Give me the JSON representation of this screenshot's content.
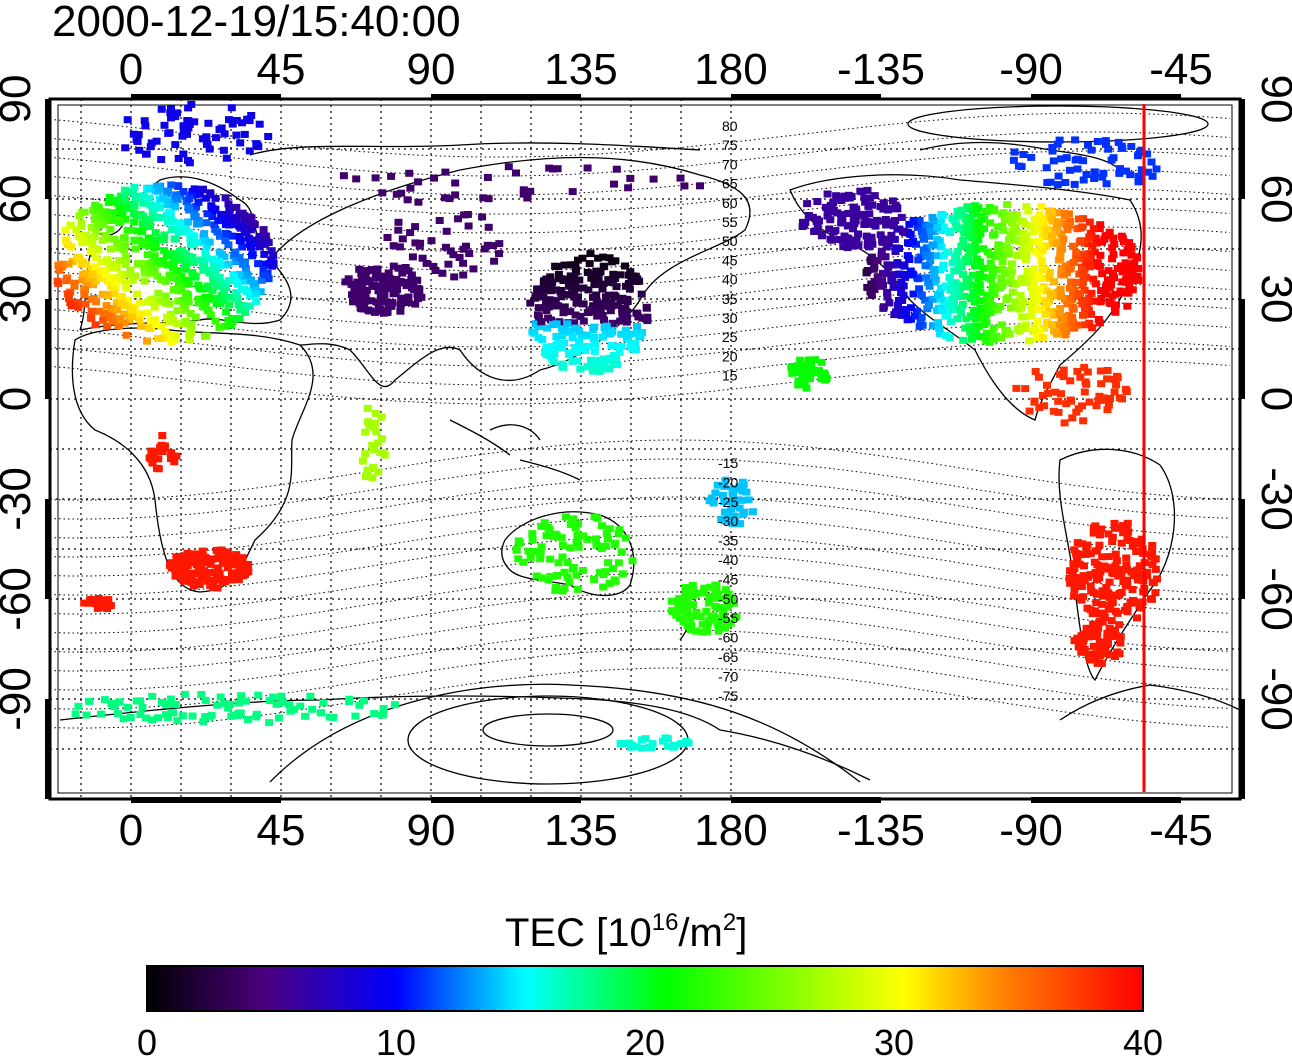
{
  "title": "2000-12-19/15:40:00",
  "axes": {
    "longitude_ticks": [
      "0",
      "45",
      "90",
      "135",
      "180",
      "-135",
      "-90",
      "-45"
    ],
    "latitude_ticks_left": [
      "90",
      "60",
      "30",
      "0",
      "-30",
      "-60",
      "-90"
    ],
    "latitude_ticks_right": [
      "90",
      "60",
      "30",
      "0",
      "-30",
      "-60",
      "-90"
    ]
  },
  "contour_labels_north": [
    "80",
    "75",
    "70",
    "65",
    "60",
    "55",
    "50",
    "45",
    "40",
    "35",
    "30",
    "25",
    "20",
    "15"
  ],
  "contour_labels_south": [
    "-15",
    "-20",
    "-25",
    "-30",
    "-35",
    "-40",
    "-45",
    "-50",
    "-55",
    "-60",
    "-65",
    "-70",
    "-75"
  ],
  "colorbar": {
    "title_main": "TEC  [10",
    "title_sup1": "16",
    "title_mid": "/m",
    "title_sup2": "2",
    "title_end": "]",
    "tick_labels": [
      "0",
      "10",
      "20",
      "30",
      "40"
    ],
    "range": [
      0,
      40
    ],
    "colors": [
      "#000000",
      "#4b0080",
      "#0000ff",
      "#00ffff",
      "#00ff00",
      "#ffff00",
      "#ff8000",
      "#ff0000"
    ]
  },
  "terminator_color": "#ff0000"
}
